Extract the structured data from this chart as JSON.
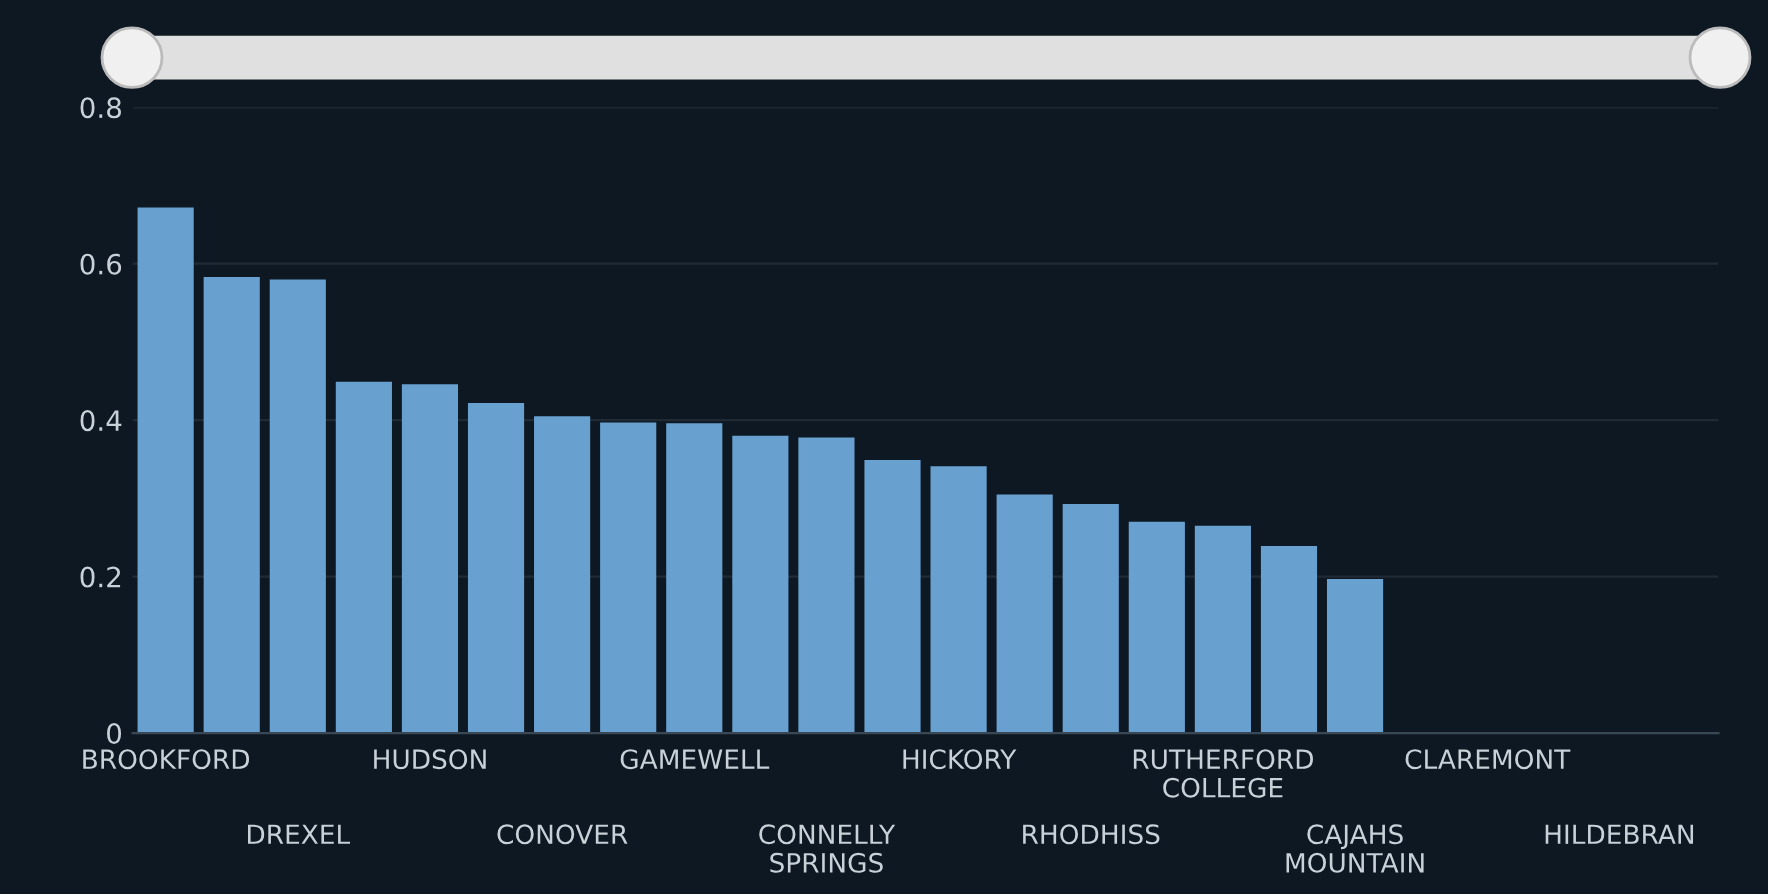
{
  "chart_data": {
    "type": "bar",
    "categories": [
      "BROOKFORD",
      null,
      "DREXEL",
      null,
      "HUDSON",
      null,
      "CONOVER",
      null,
      "GAMEWELL",
      null,
      "CONNELLY SPRINGS",
      null,
      "HICKORY",
      null,
      "RHODHISS",
      null,
      "RUTHERFORD COLLEGE",
      null,
      "CAJAHS MOUNTAIN",
      null,
      "CLAREMONT",
      null,
      "HILDEBRAN",
      null
    ],
    "values": [
      0.672,
      0.583,
      0.58,
      0.449,
      0.446,
      0.422,
      0.405,
      0.397,
      0.396,
      0.38,
      0.378,
      0.349,
      0.341,
      0.305,
      0.293,
      0.27,
      0.265,
      0.239,
      0.197,
      null,
      null,
      null,
      null,
      null
    ],
    "color": "#68a0d0",
    "ylim": [
      0,
      0.8
    ],
    "yticks": [
      {
        "value": 0,
        "label": "0"
      },
      0.2,
      0.4,
      0.6,
      0.8
    ],
    "grid": "y"
  }
}
